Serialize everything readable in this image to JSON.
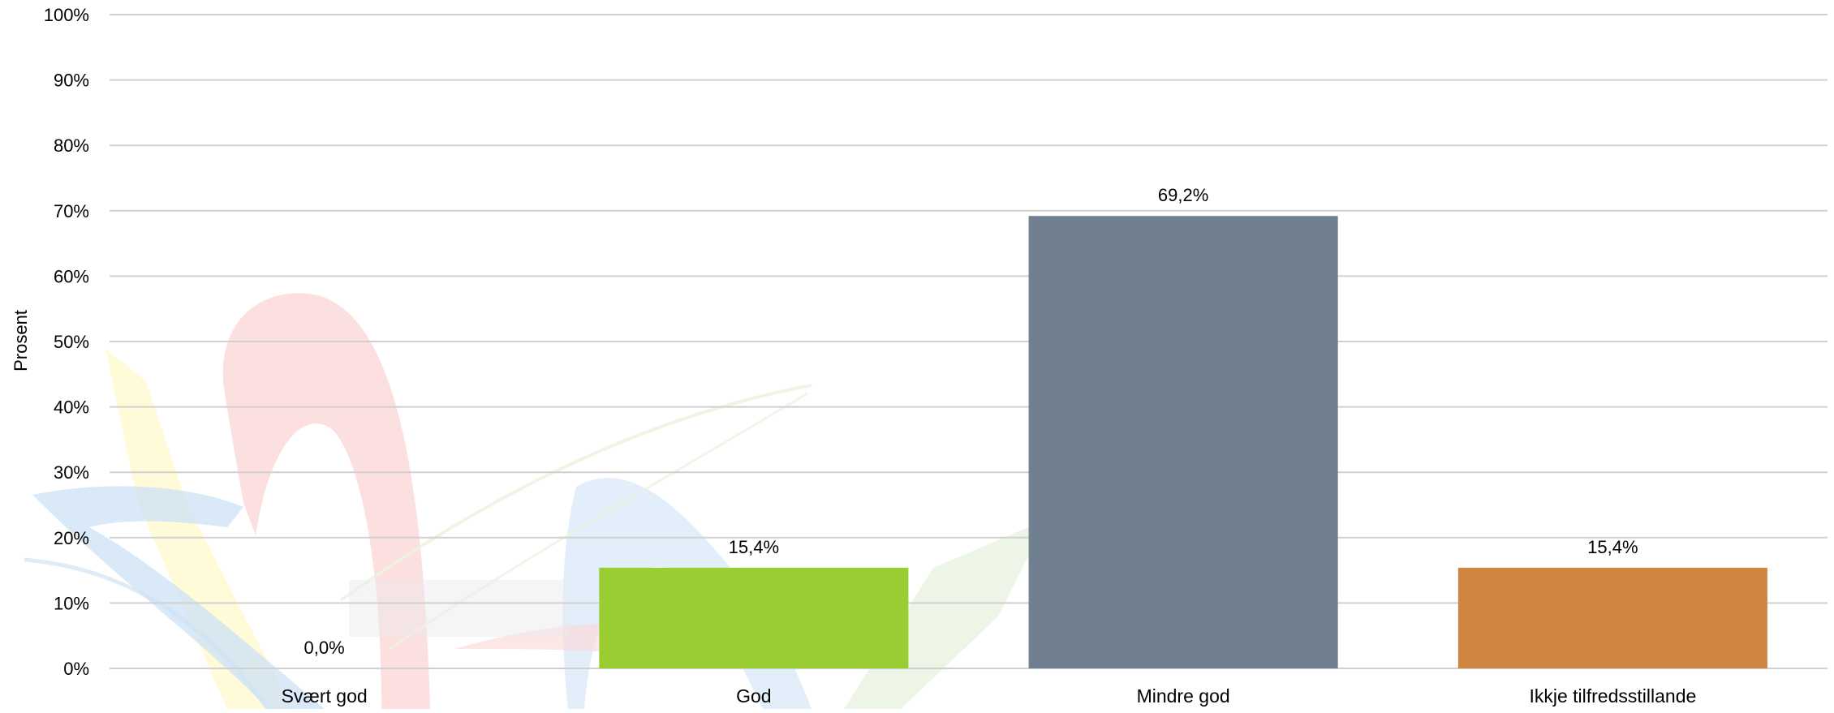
{
  "chart_data": {
    "type": "bar",
    "title": "",
    "xlabel": "",
    "ylabel": "Prosent",
    "ylim": [
      0,
      100
    ],
    "yticks": [
      "0%",
      "10%",
      "20%",
      "30%",
      "40%",
      "50%",
      "60%",
      "70%",
      "80%",
      "90%",
      "100%"
    ],
    "categories": [
      "Svært god",
      "God",
      "Mindre god",
      "Ikkje tilfredsstillande"
    ],
    "values": [
      0.0,
      15.4,
      69.2,
      15.4
    ],
    "data_labels": [
      "0,0%",
      "15,4%",
      "69,2%",
      "15,4%"
    ],
    "colors": [
      "#9ACD32",
      "#9ACD32",
      "#708090",
      "#CD853F"
    ],
    "grid": true,
    "legend": "none"
  }
}
